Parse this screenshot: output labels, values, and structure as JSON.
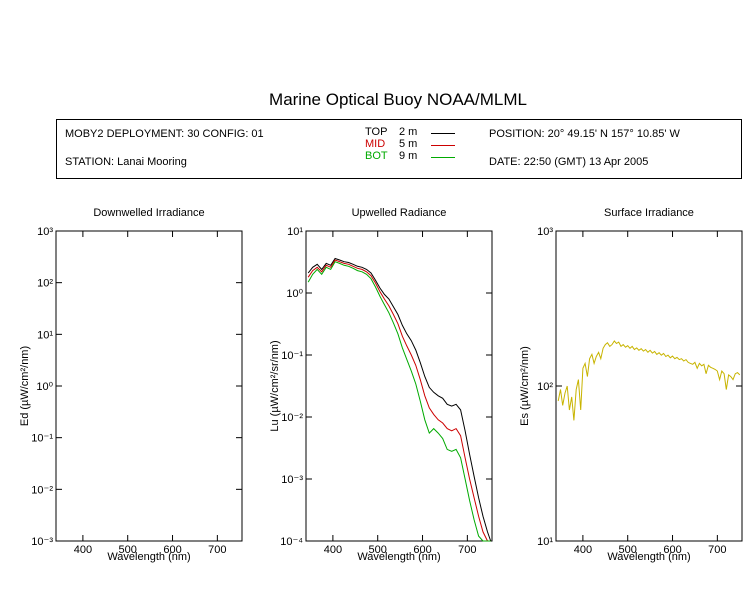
{
  "title": "Marine Optical Buoy NOAA/MLML",
  "info": {
    "deployment": "MOBY2 DEPLOYMENT: 30 CONFIG: 01",
    "station": "STATION: Lanai Mooring",
    "position": "POSITION: 20° 49.15' N   157° 10.85' W",
    "date": "DATE: 22:50 (GMT) 13 Apr 2005",
    "legend": [
      {
        "name": "TOP",
        "depth": "2  m",
        "color": "#000000"
      },
      {
        "name": "MID",
        "depth": "5  m",
        "color": "#cc0000"
      },
      {
        "name": "BOT",
        "depth": "9  m",
        "color": "#00aa00"
      }
    ]
  },
  "chart_data": [
    {
      "type": "line",
      "title": "Downwelled Irradiance",
      "xlabel": "Wavelength (nm)",
      "ylabel": "Ed  (µW/cm²/nm)",
      "xlim": [
        340,
        755
      ],
      "ylim": [
        0.001,
        1000
      ],
      "yscale": "log",
      "xticks": [
        "400",
        "500",
        "600",
        "700"
      ],
      "yticks": [
        "10⁻³",
        "10⁻²",
        "10⁻¹",
        "10⁰",
        "10¹",
        "10²",
        "10³"
      ],
      "series": []
    },
    {
      "type": "line",
      "title": "Upwelled Radiance",
      "xlabel": "Wavelength (nm)",
      "ylabel": "Lu  (µW/cm²/sr/nm)",
      "xlim": [
        340,
        755
      ],
      "ylim": [
        0.0001,
        10
      ],
      "yscale": "log",
      "xticks": [
        "400",
        "500",
        "600",
        "700"
      ],
      "yticks": [
        "10⁻⁴",
        "10⁻³",
        "10⁻²",
        "10⁻¹",
        "10⁰",
        "10¹"
      ],
      "series": [
        {
          "name": "TOP",
          "color": "#000000",
          "x": [
            345,
            355,
            365,
            375,
            385,
            395,
            405,
            415,
            425,
            435,
            445,
            455,
            465,
            475,
            485,
            495,
            505,
            515,
            525,
            535,
            545,
            555,
            565,
            575,
            585,
            595,
            605,
            615,
            625,
            635,
            645,
            655,
            665,
            675,
            685,
            695,
            705,
            715,
            725,
            735,
            745,
            752
          ],
          "y": [
            2.1,
            2.6,
            2.9,
            2.4,
            3.0,
            2.8,
            3.6,
            3.4,
            3.2,
            3.1,
            2.9,
            2.7,
            2.6,
            2.4,
            2.1,
            1.6,
            1.2,
            0.95,
            0.8,
            0.6,
            0.45,
            0.3,
            0.22,
            0.17,
            0.12,
            0.075,
            0.045,
            0.03,
            0.025,
            0.022,
            0.02,
            0.016,
            0.015,
            0.016,
            0.013,
            0.006,
            0.0025,
            0.0011,
            0.0005,
            0.00025,
            0.00014,
            0.0001
          ]
        },
        {
          "name": "MID",
          "color": "#cc0000",
          "x": [
            345,
            355,
            365,
            375,
            385,
            395,
            405,
            415,
            425,
            435,
            445,
            455,
            465,
            475,
            485,
            495,
            505,
            515,
            525,
            535,
            545,
            555,
            565,
            575,
            585,
            595,
            605,
            615,
            625,
            635,
            645,
            655,
            665,
            675,
            685,
            695,
            705,
            715,
            725,
            735,
            745,
            752
          ],
          "y": [
            1.8,
            2.3,
            2.6,
            2.2,
            2.8,
            2.6,
            3.4,
            3.2,
            3.0,
            2.9,
            2.7,
            2.5,
            2.4,
            2.2,
            1.9,
            1.45,
            1.05,
            0.8,
            0.62,
            0.45,
            0.32,
            0.2,
            0.14,
            0.1,
            0.068,
            0.04,
            0.022,
            0.014,
            0.011,
            0.009,
            0.008,
            0.0065,
            0.006,
            0.0065,
            0.005,
            0.0022,
            0.001,
            0.0005,
            0.00025,
            0.00014,
            0.0001,
            0.0001
          ]
        },
        {
          "name": "BOT",
          "color": "#00aa00",
          "x": [
            345,
            355,
            365,
            375,
            385,
            395,
            405,
            415,
            425,
            435,
            445,
            455,
            465,
            475,
            485,
            495,
            505,
            515,
            525,
            535,
            545,
            555,
            565,
            575,
            585,
            595,
            605,
            615,
            625,
            635,
            645,
            655,
            665,
            675,
            685,
            695,
            705,
            715,
            725,
            735,
            745,
            752
          ],
          "y": [
            1.5,
            2.0,
            2.4,
            2.0,
            2.6,
            2.4,
            3.2,
            3.0,
            2.8,
            2.7,
            2.5,
            2.3,
            2.2,
            2.0,
            1.7,
            1.25,
            0.88,
            0.65,
            0.48,
            0.33,
            0.22,
            0.13,
            0.085,
            0.055,
            0.034,
            0.018,
            0.009,
            0.0055,
            0.0065,
            0.0055,
            0.0045,
            0.003,
            0.0028,
            0.003,
            0.0022,
            0.001,
            0.00045,
            0.00022,
            0.00012,
            0.0001,
            0.0001,
            0.0001
          ]
        }
      ]
    },
    {
      "type": "line",
      "title": "Surface Irradiance",
      "xlabel": "Wavelength (nm)",
      "ylabel": "Es  (µW/cm²/nm)",
      "xlim": [
        340,
        755
      ],
      "ylim": [
        10,
        1000
      ],
      "yscale": "log",
      "xticks": [
        "400",
        "500",
        "600",
        "700"
      ],
      "yticks": [
        "10¹",
        "10²",
        "10³"
      ],
      "series": [
        {
          "name": "Es",
          "color": "#c8b400",
          "x": [
            345,
            350,
            355,
            360,
            365,
            370,
            375,
            380,
            385,
            390,
            395,
            400,
            405,
            410,
            415,
            420,
            425,
            430,
            435,
            440,
            445,
            450,
            455,
            460,
            465,
            470,
            475,
            480,
            485,
            490,
            495,
            500,
            505,
            510,
            515,
            520,
            525,
            530,
            535,
            540,
            545,
            550,
            555,
            560,
            565,
            570,
            575,
            580,
            585,
            590,
            595,
            600,
            605,
            610,
            615,
            620,
            625,
            630,
            635,
            640,
            645,
            650,
            655,
            660,
            665,
            670,
            675,
            680,
            685,
            690,
            695,
            700,
            705,
            710,
            715,
            720,
            725,
            730,
            735,
            740,
            745,
            750
          ],
          "y": [
            80,
            95,
            75,
            90,
            100,
            70,
            85,
            60,
            95,
            110,
            70,
            130,
            140,
            115,
            150,
            160,
            140,
            155,
            165,
            150,
            175,
            185,
            190,
            180,
            185,
            195,
            188,
            192,
            180,
            185,
            178,
            182,
            175,
            180,
            172,
            176,
            170,
            174,
            168,
            172,
            165,
            170,
            163,
            167,
            160,
            164,
            158,
            162,
            155,
            158,
            152,
            156,
            150,
            153,
            148,
            150,
            145,
            148,
            142,
            140,
            138,
            142,
            130,
            140,
            135,
            138,
            120,
            136,
            132,
            130,
            128,
            125,
            110,
            125,
            120,
            95,
            118,
            115,
            110,
            120,
            122,
            118
          ]
        }
      ]
    }
  ]
}
